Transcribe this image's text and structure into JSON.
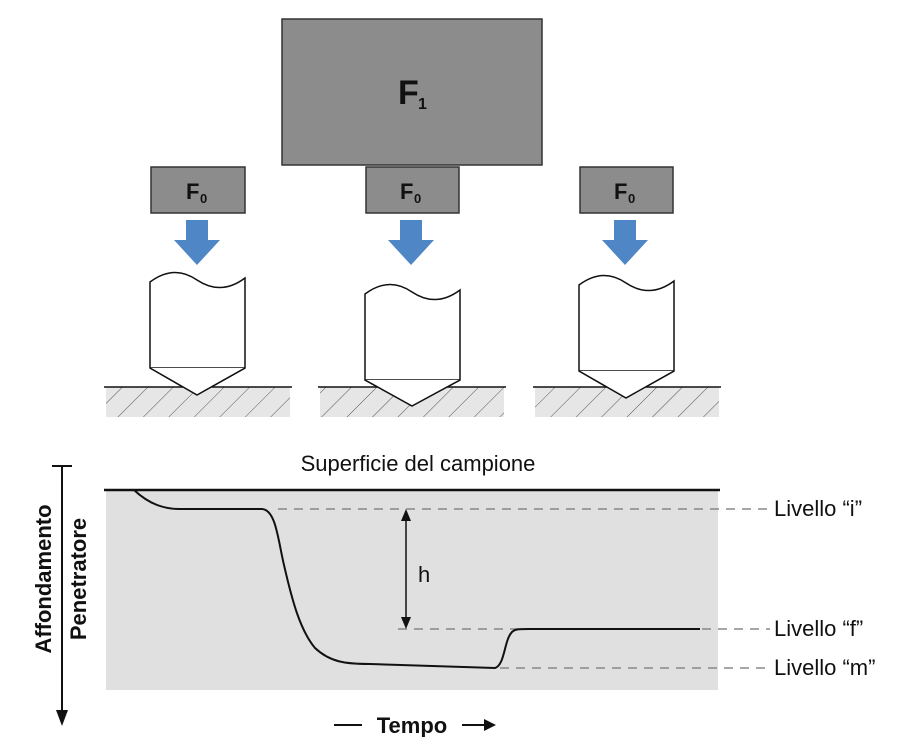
{
  "loads": {
    "big_label": "F",
    "big_sub": "1",
    "small_label": "F",
    "small_sub": "0"
  },
  "chart": {
    "surface_label": "Superficie del campione",
    "h_label": "h",
    "level_i": "Livello “i”",
    "level_f": "Livello “f”",
    "level_m": "Livello “m”",
    "y_label_line1": "Affondamento",
    "y_label_line2": "Penetratore",
    "x_label": "Tempo"
  },
  "colors": {
    "load_fill": "#8c8c8c",
    "arrow_fill": "#4f86c6",
    "chart_bg": "#e0e0e0",
    "ground_fill": "#e6e6e6"
  }
}
